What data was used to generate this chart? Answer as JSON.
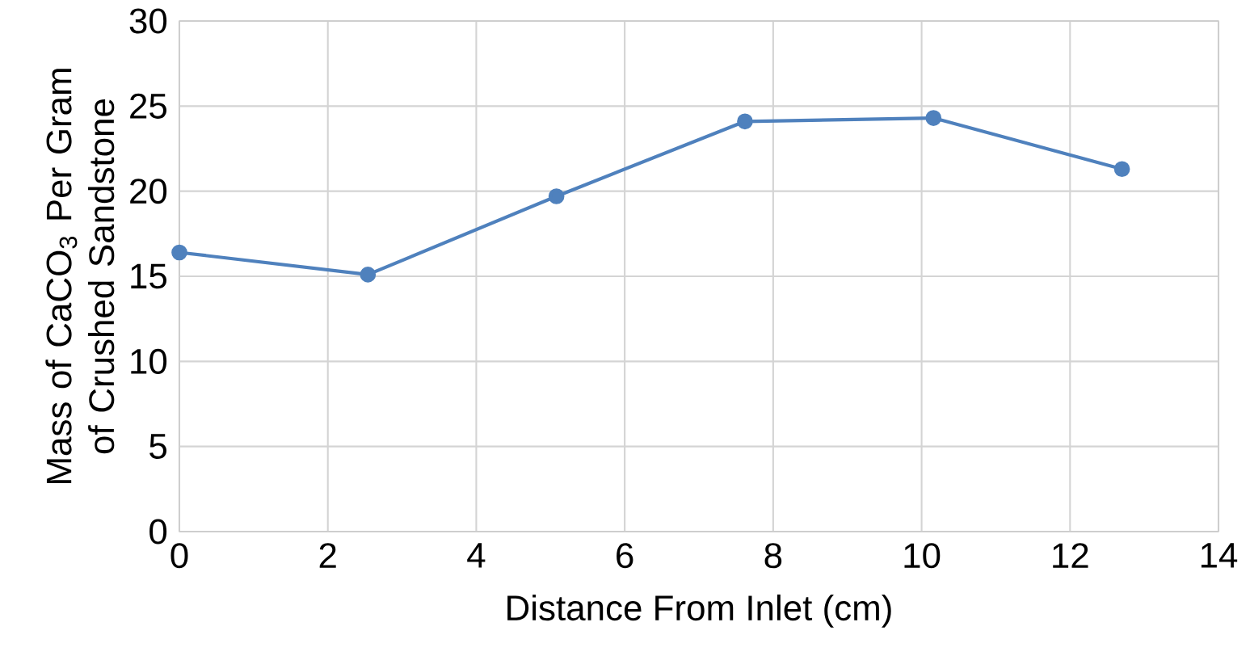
{
  "chart_data": {
    "type": "line",
    "xlabel": "Distance From Inlet (cm)",
    "ylabel": "Mass of CaCO$_{3}$ Per Gram of Crushed Sandstone",
    "x": [
      0,
      2.54,
      5.08,
      7.62,
      10.16,
      12.7
    ],
    "series": [
      {
        "color": "#4f81bd",
        "values": [
          16.4,
          15.1,
          19.7,
          24.1,
          24.3,
          21.3
        ]
      }
    ],
    "xlim": [
      0,
      14
    ],
    "ylim": [
      0,
      30
    ],
    "xticks": [
      0,
      2,
      4,
      6,
      8,
      10,
      12,
      14
    ],
    "yticks": [
      0,
      5,
      10,
      15,
      20,
      25,
      30
    ],
    "grid": true,
    "marker": "circle",
    "line_style": "solid"
  }
}
